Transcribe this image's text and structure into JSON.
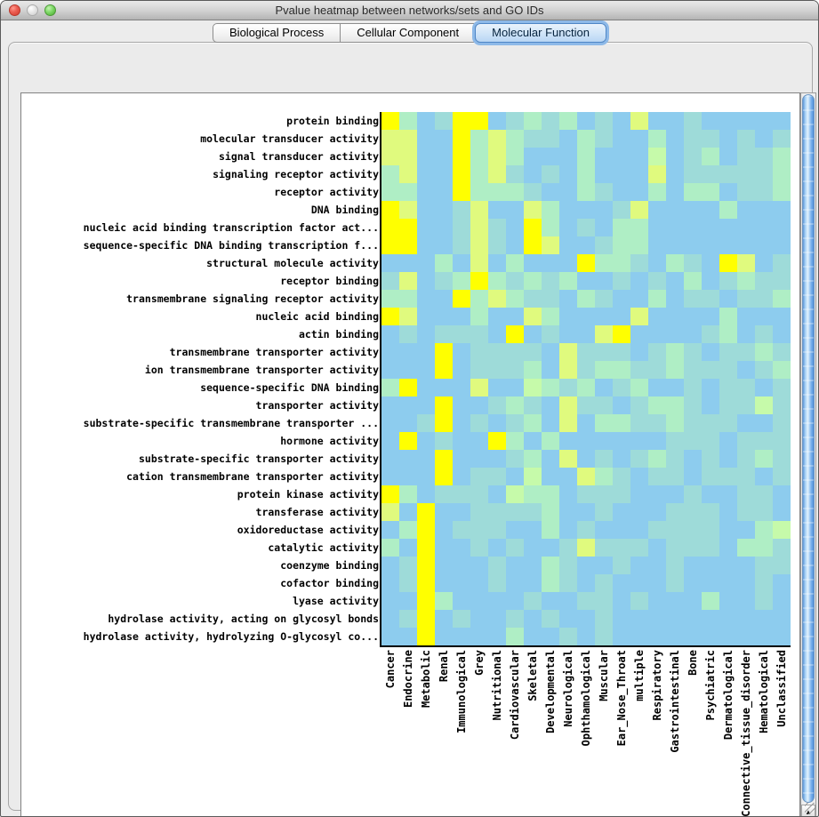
{
  "window": {
    "title": "Pvalue heatmap between networks/sets and GO IDs",
    "traffic_lights": [
      "close-button",
      "minimize-button",
      "zoom-button"
    ]
  },
  "tabs": {
    "items": [
      {
        "label": "Biological Process",
        "selected": false
      },
      {
        "label": "Cellular Component",
        "selected": false
      },
      {
        "label": "Molecular Function",
        "selected": true
      }
    ]
  },
  "scrollbars": {
    "up_icon": "▲",
    "down_icon": "▼",
    "left_icon": "◀",
    "right_icon": "▶"
  },
  "chart_data": {
    "type": "heatmap",
    "title": "Pvalue heatmap between networks/sets and GO IDs",
    "rows": [
      "protein binding",
      "molecular transducer activity",
      "signal transducer activity",
      "signaling receptor activity",
      "receptor activity",
      "DNA binding",
      "nucleic acid binding transcription factor act...",
      "sequence-specific DNA binding transcription f...",
      "structural molecule activity",
      "receptor binding",
      "transmembrane signaling receptor activity",
      "nucleic acid binding",
      "actin binding",
      "transmembrane transporter activity",
      "ion transmembrane transporter activity",
      "sequence-specific DNA binding",
      "transporter activity",
      "substrate-specific transmembrane transporter ...",
      "hormone activity",
      "substrate-specific transporter activity",
      "cation transmembrane transporter activity",
      "protein kinase activity",
      "transferase activity",
      "oxidoreductase activity",
      "catalytic activity",
      "coenzyme binding",
      "cofactor binding",
      "lyase activity",
      "hydrolase activity, acting on glycosyl bonds",
      "hydrolase activity, hydrolyzing O-glycosyl co..."
    ],
    "columns": [
      "Cancer",
      "Endocrine",
      "Metabolic",
      "Renal",
      "Immunological",
      "Grey",
      "Nutritional",
      "Cardiovascular",
      "Skeletal",
      "Developmental",
      "Neurological",
      "Ophthamological",
      "Muscular",
      "Ear_Nose_Throat",
      "multiple",
      "Respiratory",
      "Gastrointestinal",
      "Bone",
      "Psychiatric",
      "Dermatological",
      "Connective_tissue_disorder",
      "Hematological",
      "Unclassified"
    ],
    "palette": [
      "#8DCCEE",
      "#9EDBD9",
      "#AFEEC5",
      "#C6FAAA",
      "#E0FA7E",
      "#FFFF00"
    ],
    "value_encoding": "color level index into palette: 0 = light blue (lowest significance) to 5 = bright yellow (highest significance)",
    "values": [
      [
        5,
        2,
        0,
        1,
        5,
        5,
        0,
        1,
        2,
        1,
        2,
        0,
        1,
        0,
        4,
        0,
        0,
        1,
        0,
        0,
        0,
        0,
        0
      ],
      [
        4,
        4,
        0,
        0,
        5,
        2,
        4,
        2,
        1,
        1,
        0,
        2,
        1,
        0,
        0,
        2,
        0,
        1,
        1,
        0,
        1,
        0,
        1
      ],
      [
        4,
        4,
        0,
        0,
        5,
        2,
        4,
        2,
        0,
        0,
        0,
        2,
        0,
        0,
        0,
        3,
        0,
        1,
        2,
        0,
        1,
        1,
        2
      ],
      [
        2,
        4,
        0,
        0,
        5,
        2,
        4,
        1,
        0,
        1,
        0,
        2,
        0,
        0,
        0,
        4,
        0,
        1,
        1,
        1,
        1,
        1,
        2
      ],
      [
        2,
        2,
        0,
        0,
        5,
        2,
        2,
        2,
        1,
        0,
        0,
        2,
        1,
        0,
        0,
        2,
        0,
        2,
        2,
        0,
        1,
        1,
        2
      ],
      [
        5,
        4,
        0,
        0,
        1,
        4,
        0,
        0,
        4,
        2,
        0,
        0,
        0,
        1,
        4,
        0,
        0,
        0,
        0,
        2,
        0,
        0,
        0
      ],
      [
        5,
        5,
        0,
        0,
        1,
        4,
        1,
        0,
        5,
        2,
        0,
        1,
        0,
        2,
        2,
        0,
        0,
        0,
        0,
        0,
        0,
        0,
        0
      ],
      [
        5,
        5,
        0,
        0,
        1,
        4,
        1,
        0,
        5,
        4,
        0,
        0,
        1,
        2,
        2,
        0,
        0,
        0,
        0,
        0,
        0,
        0,
        0
      ],
      [
        0,
        0,
        0,
        2,
        0,
        4,
        0,
        2,
        0,
        0,
        0,
        5,
        2,
        2,
        1,
        0,
        2,
        1,
        0,
        5,
        4,
        0,
        1
      ],
      [
        1,
        4,
        0,
        1,
        2,
        5,
        2,
        1,
        2,
        1,
        2,
        0,
        0,
        1,
        0,
        1,
        0,
        2,
        0,
        1,
        2,
        1,
        1
      ],
      [
        2,
        2,
        0,
        0,
        5,
        2,
        4,
        2,
        1,
        1,
        0,
        2,
        1,
        0,
        0,
        2,
        0,
        1,
        1,
        0,
        1,
        1,
        2
      ],
      [
        5,
        4,
        0,
        0,
        0,
        2,
        0,
        0,
        4,
        2,
        0,
        0,
        0,
        0,
        4,
        0,
        0,
        0,
        0,
        2,
        0,
        0,
        0
      ],
      [
        0,
        1,
        0,
        1,
        1,
        1,
        0,
        5,
        0,
        1,
        0,
        0,
        4,
        5,
        0,
        0,
        0,
        0,
        1,
        2,
        0,
        1,
        0
      ],
      [
        0,
        0,
        0,
        5,
        0,
        1,
        1,
        1,
        1,
        0,
        4,
        1,
        1,
        1,
        0,
        1,
        2,
        1,
        0,
        1,
        1,
        2,
        1
      ],
      [
        0,
        0,
        0,
        5,
        0,
        1,
        1,
        1,
        2,
        0,
        4,
        1,
        2,
        2,
        1,
        1,
        2,
        1,
        1,
        1,
        0,
        1,
        2
      ],
      [
        2,
        5,
        0,
        0,
        0,
        4,
        0,
        0,
        3,
        2,
        1,
        2,
        0,
        1,
        2,
        0,
        0,
        1,
        0,
        1,
        1,
        0,
        1
      ],
      [
        0,
        0,
        0,
        5,
        0,
        0,
        1,
        2,
        1,
        0,
        4,
        1,
        1,
        0,
        1,
        2,
        2,
        1,
        0,
        1,
        1,
        3,
        1
      ],
      [
        0,
        0,
        1,
        5,
        0,
        1,
        0,
        1,
        2,
        0,
        4,
        0,
        2,
        2,
        1,
        1,
        2,
        1,
        1,
        1,
        0,
        0,
        1
      ],
      [
        0,
        5,
        0,
        1,
        0,
        0,
        5,
        2,
        0,
        2,
        0,
        0,
        0,
        0,
        0,
        0,
        1,
        1,
        1,
        0,
        1,
        1,
        1
      ],
      [
        0,
        0,
        0,
        5,
        0,
        0,
        0,
        1,
        2,
        0,
        4,
        0,
        1,
        0,
        1,
        2,
        1,
        0,
        1,
        0,
        1,
        2,
        1
      ],
      [
        0,
        0,
        0,
        5,
        0,
        1,
        1,
        0,
        3,
        0,
        0,
        4,
        2,
        1,
        0,
        1,
        1,
        0,
        1,
        1,
        1,
        0,
        1
      ],
      [
        5,
        2,
        0,
        1,
        1,
        1,
        0,
        3,
        2,
        2,
        0,
        1,
        1,
        1,
        0,
        0,
        0,
        1,
        0,
        0,
        1,
        1,
        0
      ],
      [
        4,
        0,
        5,
        0,
        0,
        1,
        1,
        1,
        1,
        2,
        0,
        0,
        1,
        0,
        0,
        0,
        1,
        1,
        1,
        0,
        1,
        1,
        0
      ],
      [
        0,
        2,
        5,
        0,
        1,
        1,
        1,
        0,
        0,
        2,
        0,
        1,
        0,
        0,
        0,
        1,
        1,
        1,
        1,
        0,
        0,
        2,
        3
      ],
      [
        2,
        0,
        5,
        0,
        0,
        1,
        0,
        1,
        0,
        0,
        1,
        4,
        1,
        1,
        1,
        0,
        1,
        1,
        1,
        0,
        2,
        2,
        1
      ],
      [
        0,
        1,
        5,
        0,
        0,
        0,
        1,
        0,
        0,
        2,
        1,
        0,
        0,
        1,
        0,
        0,
        1,
        0,
        0,
        0,
        0,
        1,
        1
      ],
      [
        0,
        1,
        5,
        0,
        0,
        0,
        1,
        0,
        0,
        2,
        1,
        0,
        1,
        0,
        0,
        0,
        1,
        0,
        0,
        0,
        0,
        1,
        0
      ],
      [
        0,
        0,
        5,
        2,
        0,
        0,
        0,
        0,
        1,
        0,
        0,
        1,
        1,
        0,
        1,
        0,
        0,
        0,
        2,
        0,
        0,
        1,
        0
      ],
      [
        0,
        1,
        5,
        0,
        1,
        0,
        0,
        1,
        0,
        1,
        0,
        0,
        1,
        0,
        0,
        0,
        0,
        0,
        0,
        0,
        0,
        0,
        0
      ],
      [
        0,
        0,
        5,
        0,
        0,
        0,
        0,
        2,
        0,
        0,
        1,
        0,
        1,
        0,
        0,
        0,
        0,
        0,
        0,
        0,
        0,
        0,
        0
      ]
    ]
  }
}
